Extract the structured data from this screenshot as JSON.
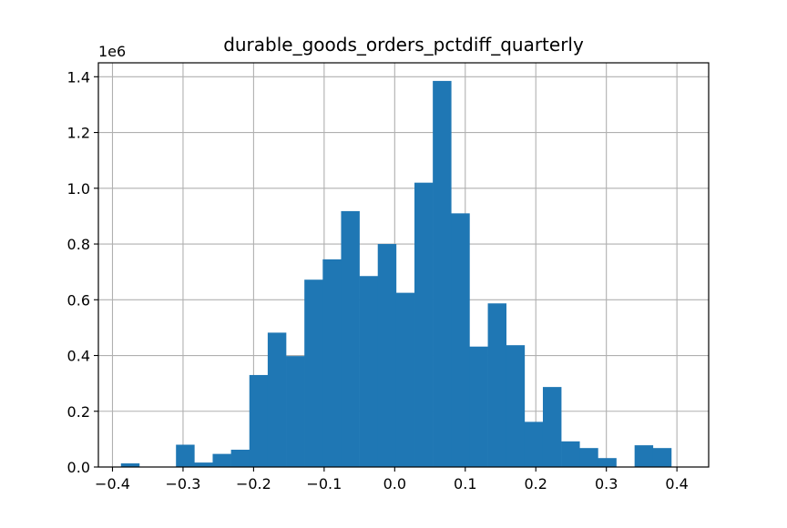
{
  "chart_data": {
    "type": "bar",
    "title": "durable_goods_orders_pctdiff_quarterly",
    "xlabel": "",
    "ylabel": "",
    "y_offset_label": "1e6",
    "xlim": [
      -0.42,
      0.445
    ],
    "ylim": [
      0,
      1.45
    ],
    "x_ticks": [
      -0.4,
      -0.3,
      -0.2,
      -0.1,
      0.0,
      0.1,
      0.2,
      0.3,
      0.4
    ],
    "x_tick_labels": [
      "−0.4",
      "−0.3",
      "−0.2",
      "−0.1",
      "0.0",
      "0.1",
      "0.2",
      "0.3",
      "0.4"
    ],
    "y_ticks": [
      0.0,
      0.2,
      0.4,
      0.6,
      0.8,
      1.0,
      1.2,
      1.4
    ],
    "y_tick_labels": [
      "0.0",
      "0.2",
      "0.4",
      "0.6",
      "0.8",
      "1.0",
      "1.2",
      "1.4"
    ],
    "grid": true,
    "bar_color": "#1f77b4",
    "bin_start": -0.388,
    "bin_width": 0.026,
    "bin_counts": [
      0.013,
      0.0,
      0.0,
      0.08,
      0.016,
      0.047,
      0.062,
      0.33,
      0.482,
      0.398,
      0.672,
      0.745,
      0.918,
      0.685,
      0.8,
      0.625,
      1.02,
      1.385,
      0.91,
      0.432,
      0.587,
      0.437,
      0.162,
      0.287,
      0.092,
      0.068,
      0.032,
      0.0,
      0.078,
      0.068
    ]
  }
}
